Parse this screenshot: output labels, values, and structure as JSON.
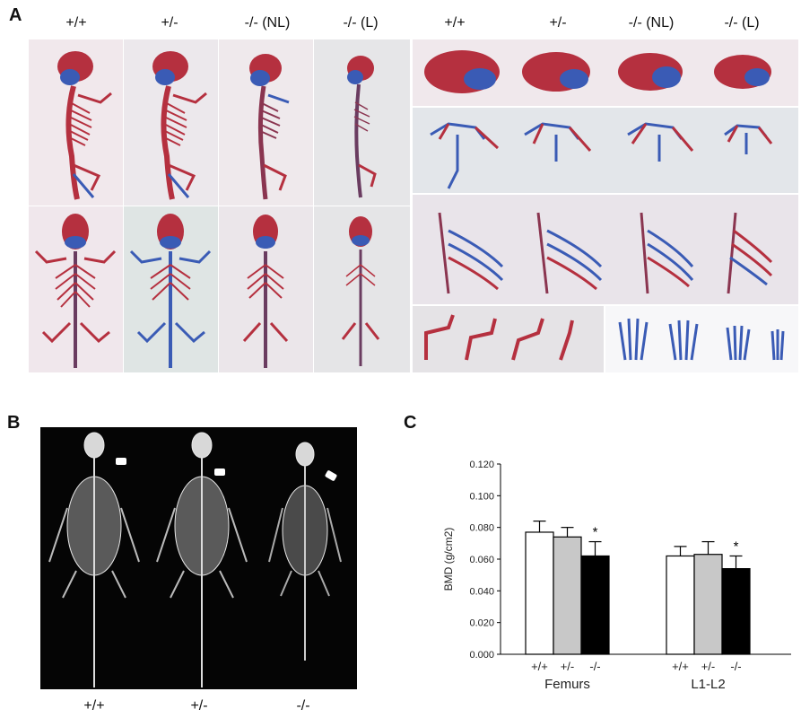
{
  "figure": {
    "panel_a_letter": "A",
    "panel_b_letter": "B",
    "panel_c_letter": "C",
    "panel_a": {
      "left_genotypes": [
        "+/+",
        "+/-",
        "-/- (NL)",
        "-/- (L)"
      ],
      "right_genotypes": [
        "+/+",
        "+/-",
        "-/- (NL)",
        "-/- (L)"
      ]
    },
    "panel_b": {
      "labels": [
        "+/+",
        "+/-",
        "-/-"
      ]
    }
  },
  "colors": {
    "bone_red": "#b5303f",
    "cartilage_blue": "#3a5bb5",
    "bg_pink": "#f1e9ec",
    "bg_grey": "#e3e6e8",
    "xray_bg": "#050505",
    "bar_white": "#ffffff",
    "bar_grey": "#c8c8c8",
    "bar_black": "#000000"
  },
  "chart_data": {
    "type": "bar",
    "ylabel": "BMD (g/cm2)",
    "ylim": [
      0,
      0.12
    ],
    "yticks": [
      "0.000",
      "0.020",
      "0.040",
      "0.060",
      "0.080",
      "0.100",
      "0.120"
    ],
    "groups": [
      "Femurs",
      "L1-L2"
    ],
    "categories": [
      "+/+",
      "+/-",
      "-/-"
    ],
    "series": [
      {
        "group": "Femurs",
        "values": [
          0.077,
          0.074,
          0.062
        ],
        "errors": [
          0.007,
          0.006,
          0.009
        ],
        "annotations": [
          "",
          "",
          "*"
        ]
      },
      {
        "group": "L1-L2",
        "values": [
          0.062,
          0.063,
          0.054
        ],
        "errors": [
          0.006,
          0.008,
          0.008
        ],
        "annotations": [
          "",
          "",
          "*"
        ]
      }
    ],
    "grid": false,
    "legend": "none"
  }
}
